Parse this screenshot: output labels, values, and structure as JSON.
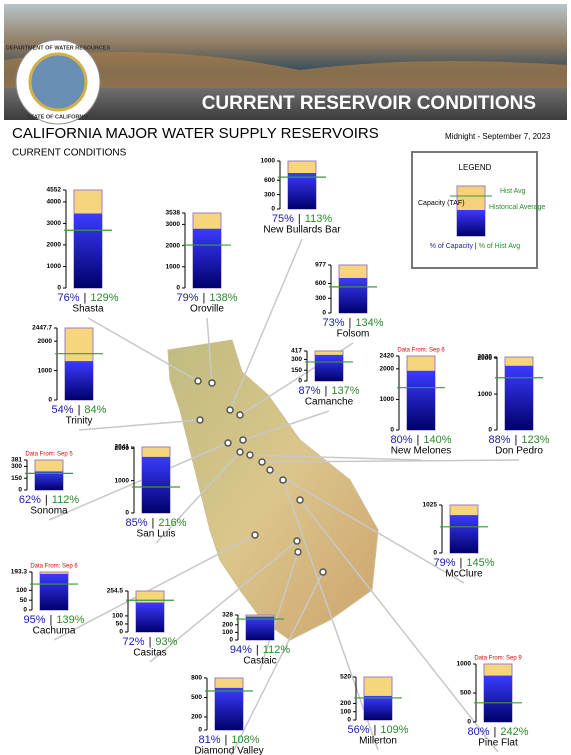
{
  "header": {
    "banner": "CURRENT RESERVOIR CONDITIONS",
    "seal_top": "DEPARTMENT OF WATER RESOURCES",
    "seal_bottom": "STATE OF CALIFORNIA"
  },
  "title": "CALIFORNIA MAJOR WATER SUPPLY RESERVOIRS",
  "subtitle": "CURRENT CONDITIONS",
  "date": "Midnight - September 7, 2023",
  "legend": {
    "title": "LEGEND",
    "hist_avg": "Hist Avg",
    "capacity": "Capacity (TAF)",
    "historical_average": "Historical Average",
    "pct_capacity": "% of Capacity",
    "separator": "|",
    "pct_hist": "% of Hist Avg"
  },
  "reservoirs": [
    {
      "name": "Shasta",
      "ylim": [
        0,
        4552
      ],
      "yticks": [
        0,
        1000,
        2000,
        3000,
        4000,
        4552
      ],
      "storage": 3460,
      "hist_avg": 2682,
      "pct_capacity": "76%",
      "pct_hist": "129%"
    },
    {
      "name": "Oroville",
      "ylim": [
        0,
        3538
      ],
      "yticks": [
        0,
        1000,
        2000,
        3000,
        3538
      ],
      "storage": 2795,
      "hist_avg": 2025,
      "pct_capacity": "79%",
      "pct_hist": "138%"
    },
    {
      "name": "New Bullards Bar",
      "ylim": [
        0,
        1000
      ],
      "yticks": [
        0,
        300,
        600,
        1000
      ],
      "storage": 750,
      "hist_avg": 664,
      "pct_capacity": "75%",
      "pct_hist": "113%"
    },
    {
      "name": "Folsom",
      "ylim": [
        0,
        977
      ],
      "yticks": [
        0,
        300,
        600,
        977
      ],
      "storage": 713,
      "hist_avg": 532,
      "pct_capacity": "73%",
      "pct_hist": "134%"
    },
    {
      "name": "Trinity",
      "ylim": [
        0,
        2447.7
      ],
      "yticks": [
        0,
        1000,
        2000,
        2447.7
      ],
      "storage": 1322,
      "hist_avg": 1574,
      "pct_capacity": "54%",
      "pct_hist": "84%"
    },
    {
      "name": "Camanche",
      "ylim": [
        0,
        417
      ],
      "yticks": [
        0,
        150,
        300,
        417
      ],
      "storage": 363,
      "hist_avg": 265,
      "pct_capacity": "87%",
      "pct_hist": "137%"
    },
    {
      "name": "New Melones",
      "ylim": [
        0,
        2420
      ],
      "yticks": [
        0,
        1000,
        2000,
        2420
      ],
      "storage": 1936,
      "hist_avg": 1383,
      "pct_capacity": "80%",
      "pct_hist": "140%",
      "note": "Data From: Sep 6"
    },
    {
      "name": "Don Pedro",
      "ylim": [
        0,
        2030
      ],
      "yticks": [
        0,
        1000,
        2000,
        2030
      ],
      "storage": 1786,
      "hist_avg": 1452,
      "pct_capacity": "88%",
      "pct_hist": "123%"
    },
    {
      "name": "Sonoma",
      "ylim": [
        0,
        381
      ],
      "yticks": [
        0,
        150,
        300,
        381
      ],
      "storage": 236,
      "hist_avg": 211,
      "pct_capacity": "62%",
      "pct_hist": "112%",
      "note": "Data From: Sep 5"
    },
    {
      "name": "San Luis",
      "ylim": [
        0,
        2041
      ],
      "yticks": [
        0,
        1000,
        2000,
        2041
      ],
      "storage": 1735,
      "hist_avg": 803,
      "pct_capacity": "85%",
      "pct_hist": "216%"
    },
    {
      "name": "McClure",
      "ylim": [
        0,
        1025
      ],
      "yticks": [
        0,
        1025
      ],
      "storage": 810,
      "hist_avg": 559,
      "pct_capacity": "79%",
      "pct_hist": "145%"
    },
    {
      "name": "Cachuma",
      "ylim": [
        0,
        193.3
      ],
      "yticks": [
        0,
        50,
        100,
        193.3
      ],
      "storage": 184,
      "hist_avg": 132,
      "pct_capacity": "95%",
      "pct_hist": "139%",
      "note": "Data From: Sep 6"
    },
    {
      "name": "Casitas",
      "ylim": [
        0,
        254.5
      ],
      "yticks": [
        0,
        50,
        100,
        254.5
      ],
      "storage": 183,
      "hist_avg": 197,
      "pct_capacity": "72%",
      "pct_hist": "93%"
    },
    {
      "name": "Castaic",
      "ylim": [
        0,
        328
      ],
      "yticks": [
        0,
        100,
        200,
        328
      ],
      "storage": 308,
      "hist_avg": 275,
      "pct_capacity": "94%",
      "pct_hist": "112%"
    },
    {
      "name": "Diamond Valley",
      "ylim": [
        0,
        800
      ],
      "yticks": [
        0,
        200,
        500,
        800
      ],
      "storage": 648,
      "hist_avg": 600,
      "pct_capacity": "81%",
      "pct_hist": "108%"
    },
    {
      "name": "Millerton",
      "ylim": [
        0,
        520
      ],
      "yticks": [
        0,
        100,
        200,
        520
      ],
      "storage": 291,
      "hist_avg": 267,
      "pct_capacity": "56%",
      "pct_hist": "109%"
    },
    {
      "name": "Pine Flat",
      "ylim": [
        0,
        1000
      ],
      "yticks": [
        0,
        500,
        1000
      ],
      "storage": 800,
      "hist_avg": 331,
      "pct_capacity": "80%",
      "pct_hist": "242%",
      "note": "Data From: Sep 9"
    }
  ]
}
